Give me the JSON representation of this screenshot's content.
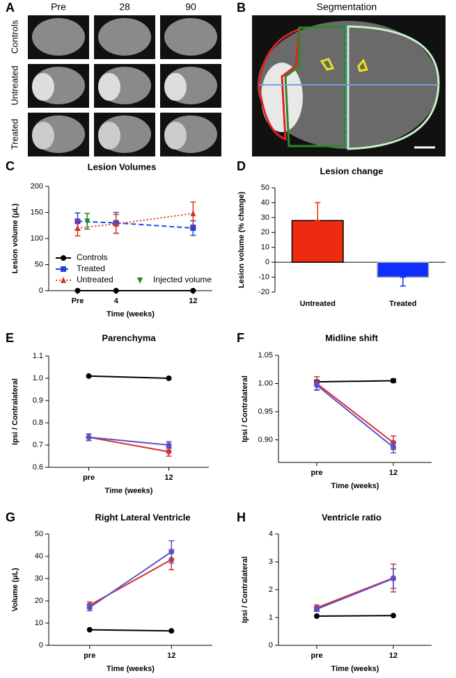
{
  "figure": {
    "panel_labels": [
      "A",
      "B",
      "C",
      "D",
      "E",
      "F",
      "G",
      "H"
    ],
    "panel_a": {
      "columns": [
        "Pre",
        "28",
        "90"
      ],
      "rows": [
        "Controls",
        "Untreated",
        "Treated"
      ]
    },
    "panel_b": {
      "title": "Segmentation"
    }
  },
  "chart_data": [
    {
      "type": "line",
      "title": "Lesion Volumes",
      "y_label": "Lesion volume (μL)",
      "x_label": "Time (weeks)",
      "x": [
        0,
        4,
        12
      ],
      "xlim": [
        -3,
        14
      ],
      "xticks": [
        {
          "value": 0,
          "label": "Pre"
        },
        4,
        12
      ],
      "ylim": [
        0,
        200
      ],
      "yticks": [
        0,
        50,
        100,
        150,
        200
      ],
      "legend": "lower left",
      "series": [
        {
          "name": "Controls",
          "color": "#000000",
          "marker": "circle",
          "values": [
            0,
            0,
            0
          ]
        },
        {
          "name": "Treated",
          "color": "#1f45e0",
          "marker": "square",
          "dash": "7,4",
          "values": [
            133,
            130,
            120
          ],
          "errors": [
            16,
            20,
            14
          ]
        },
        {
          "name": "Untreated",
          "color": "#e0321f",
          "marker": "triangle-up",
          "dash": "2,3",
          "values": [
            120,
            128,
            148
          ],
          "errors": [
            15,
            18,
            22
          ]
        },
        {
          "name": "Injected volume",
          "color": "#1e8a1e",
          "marker": "triangle-down",
          "x": [
            1
          ],
          "values": [
            133
          ],
          "errors": [
            15
          ]
        }
      ]
    },
    {
      "type": "bar",
      "title": "Lesion change",
      "y_label": "Lesion volume (% change)",
      "categories": [
        "Untreated",
        "Treated"
      ],
      "values": [
        28,
        -10
      ],
      "errors": [
        12,
        6
      ],
      "colors": [
        "#ee2a10",
        "#1030ff"
      ],
      "ylim": [
        -20,
        50
      ],
      "yticks": [
        -20,
        -10,
        0,
        10,
        20,
        30,
        40,
        50
      ]
    },
    {
      "type": "line",
      "title": "Parenchyma",
      "y_label": "Ipsi / Contralateral",
      "x_label": "Time (weeks)",
      "categories": [
        "pre",
        "12"
      ],
      "ylim": [
        0.6,
        1.1
      ],
      "yticks": [
        0.6,
        0.7,
        0.8,
        0.9,
        {
          "value": 1,
          "label": "1.0"
        },
        1.1
      ],
      "series": [
        {
          "color": "#000000",
          "values": [
            1.01,
            1.0
          ]
        },
        {
          "color": "#d8302a",
          "values": [
            0.735,
            0.67
          ],
          "errors": [
            0.015,
            0.02
          ]
        },
        {
          "color": "#5a4fd0",
          "values": [
            0.735,
            0.7
          ],
          "errors": [
            0.015,
            0.015
          ]
        }
      ]
    },
    {
      "type": "line",
      "title": "Midline shift",
      "y_label": "Ipsi / Contralateral",
      "x_label": "Time (weeks)",
      "categories": [
        "pre",
        "12"
      ],
      "ylim": [
        0.86,
        1.05
      ],
      "yticks": [
        {
          "value": 0.9,
          "label": "0.90"
        },
        0.95,
        {
          "value": 1,
          "label": "1.00"
        },
        1.05
      ],
      "series": [
        {
          "color": "#000000",
          "values": [
            1.003,
            1.005
          ],
          "errors": [
            0.003,
            0.003
          ]
        },
        {
          "color": "#d8302a",
          "values": [
            1.0,
            0.895
          ],
          "errors": [
            0.012,
            0.012
          ]
        },
        {
          "color": "#5a4fd0",
          "values": [
            0.997,
            0.887
          ],
          "errors": [
            0.008,
            0.01
          ]
        }
      ]
    },
    {
      "type": "line",
      "title": "Right Lateral Ventricle",
      "y_label": "Volume (μL)",
      "x_label": "Time (weeks)",
      "categories": [
        "pre",
        "12"
      ],
      "ylim": [
        0,
        50
      ],
      "yticks": [
        0,
        10,
        20,
        30,
        40,
        50
      ],
      "series": [
        {
          "color": "#000000",
          "values": [
            7,
            6.5
          ]
        },
        {
          "color": "#d8302a",
          "values": [
            18,
            38.5
          ],
          "errors": [
            1.5,
            4.5
          ]
        },
        {
          "color": "#5a4fd0",
          "values": [
            17,
            42
          ],
          "errors": [
            1.5,
            5
          ]
        }
      ]
    },
    {
      "type": "line",
      "title": "Ventricle ratio",
      "y_label": "Ipsi / Contralateral",
      "x_label": "Time (weeks)",
      "categories": [
        "pre",
        "12"
      ],
      "ylim": [
        0,
        4
      ],
      "yticks": [
        0,
        1,
        2,
        3,
        4
      ],
      "series": [
        {
          "color": "#000000",
          "values": [
            1.05,
            1.07
          ]
        },
        {
          "color": "#d8302a",
          "values": [
            1.35,
            2.42
          ],
          "errors": [
            0.1,
            0.5
          ]
        },
        {
          "color": "#5a4fd0",
          "values": [
            1.3,
            2.4
          ],
          "errors": [
            0.08,
            0.35
          ]
        }
      ]
    }
  ]
}
